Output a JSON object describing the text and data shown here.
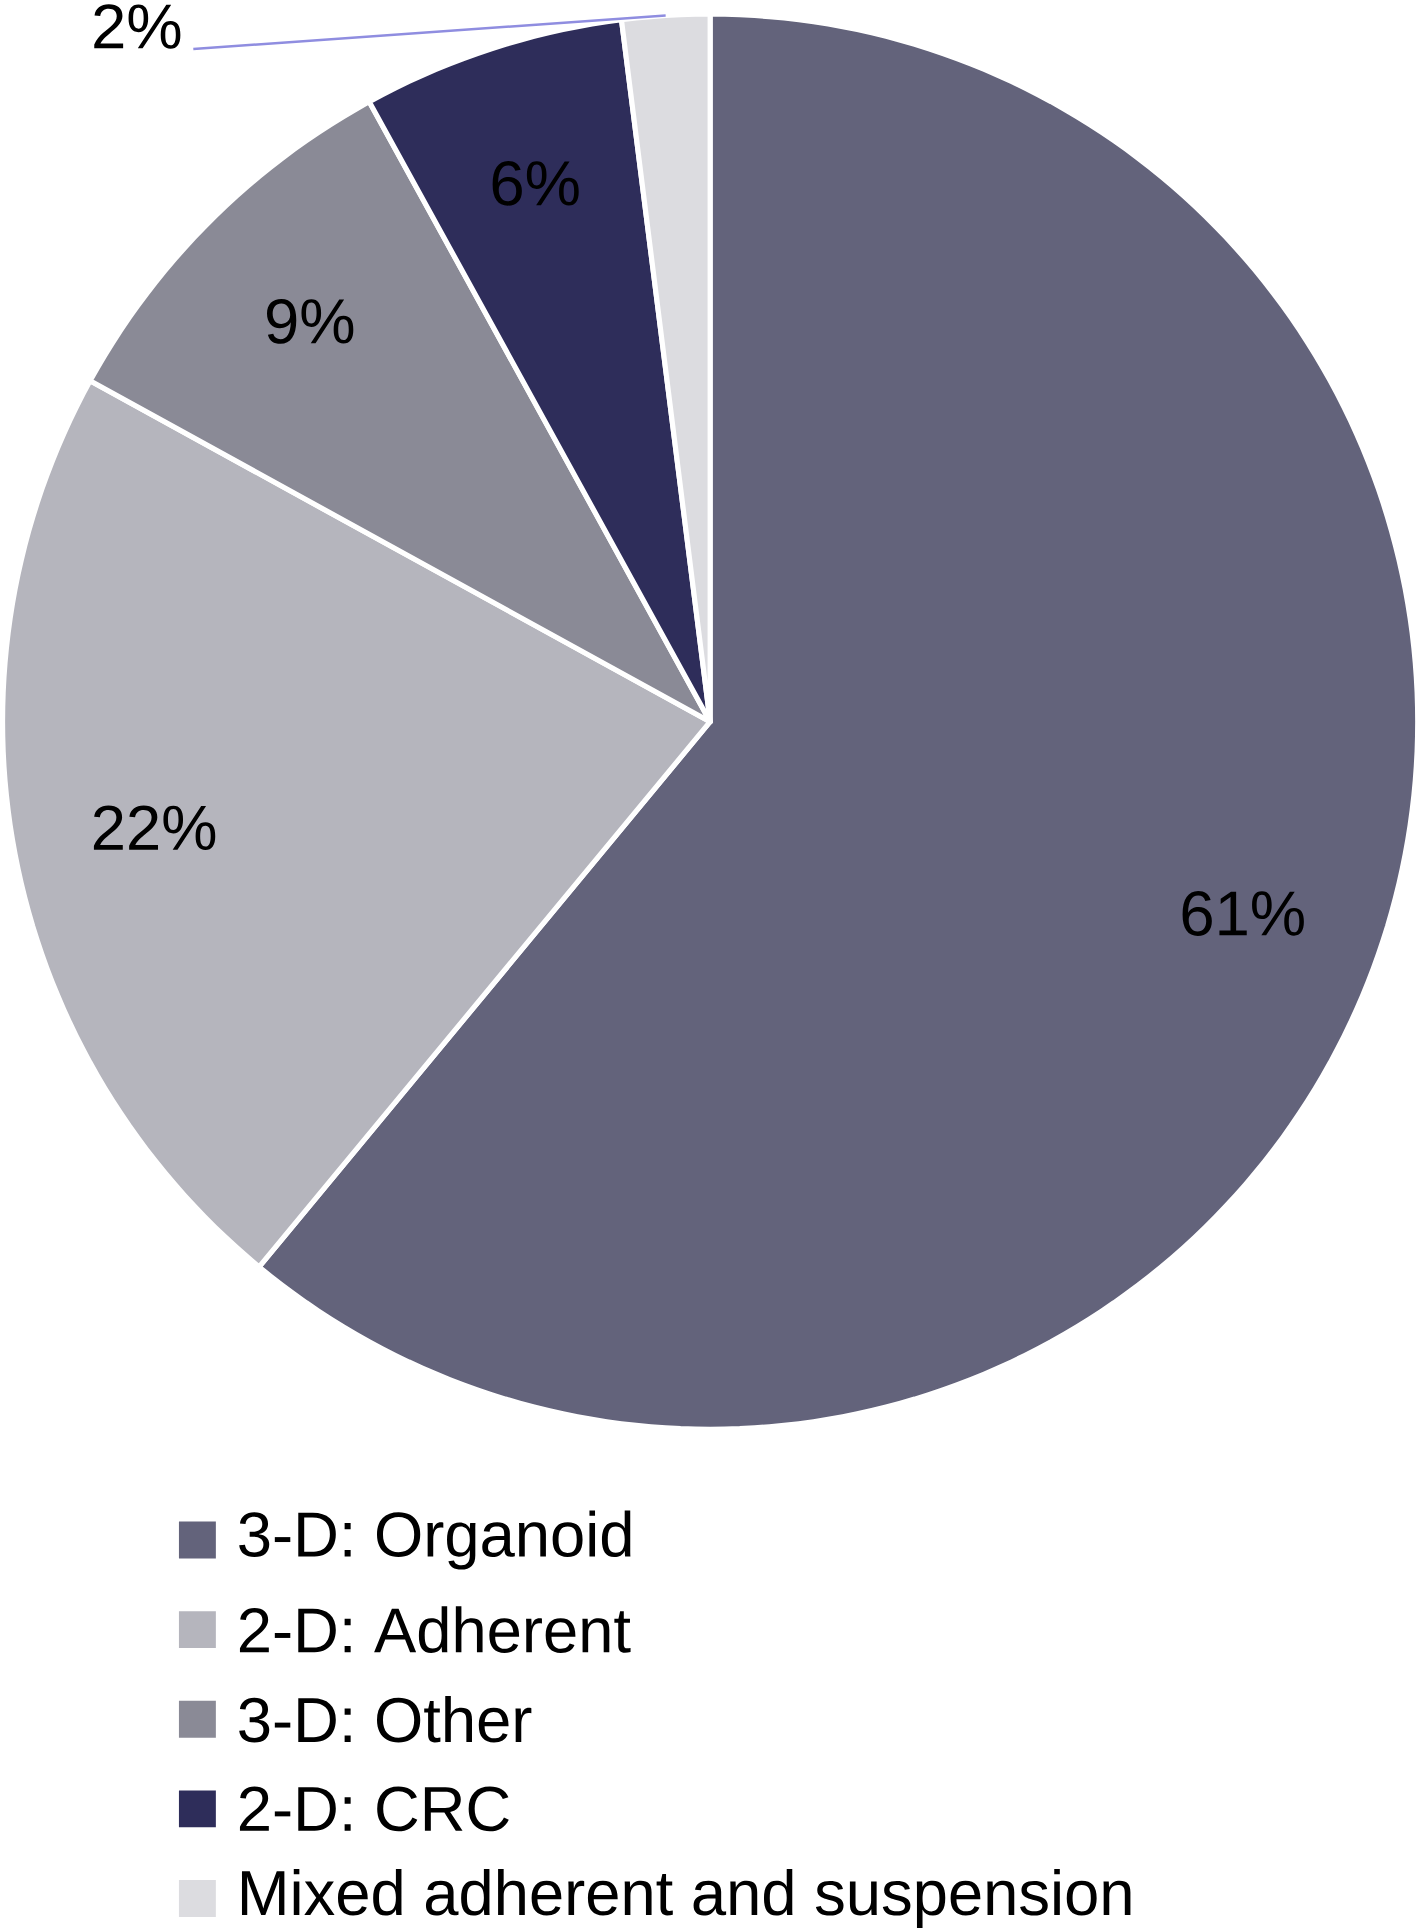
{
  "chart_data": {
    "type": "pie",
    "categories": [
      "3-D: Organoid",
      "2-D: Adherent",
      "3-D: Other",
      "2-D: CRC",
      "Mixed adherent and suspension"
    ],
    "values": [
      61,
      22,
      9,
      6,
      2
    ],
    "colors": [
      "#63637b",
      "#b5b5bd",
      "#8a8a96",
      "#2e2d5a",
      "#dcdce0"
    ],
    "value_labels": [
      "61%",
      "22%",
      "9%",
      "6%",
      "2%"
    ],
    "legend": "bottom"
  }
}
